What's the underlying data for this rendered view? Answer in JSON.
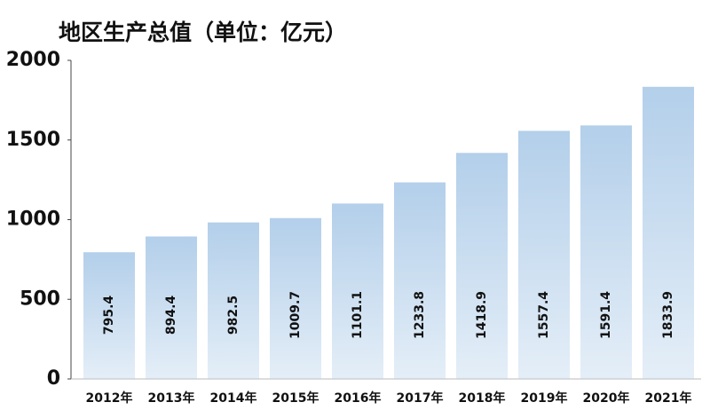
{
  "chart_data": {
    "type": "bar",
    "title": "地区生产总值（单位：亿元）",
    "categories": [
      "2012年",
      "2013年",
      "2014年",
      "2015年",
      "2016年",
      "2017年",
      "2018年",
      "2019年",
      "2020年",
      "2021年"
    ],
    "values": [
      795.4,
      894.4,
      982.5,
      1009.7,
      1101.1,
      1233.8,
      1418.9,
      1557.4,
      1591.4,
      1833.9
    ],
    "color": "#b3cfea",
    "ylim": [
      0,
      2000
    ],
    "yticks": [
      0,
      500,
      1000,
      1500,
      2000
    ],
    "grid": false
  }
}
